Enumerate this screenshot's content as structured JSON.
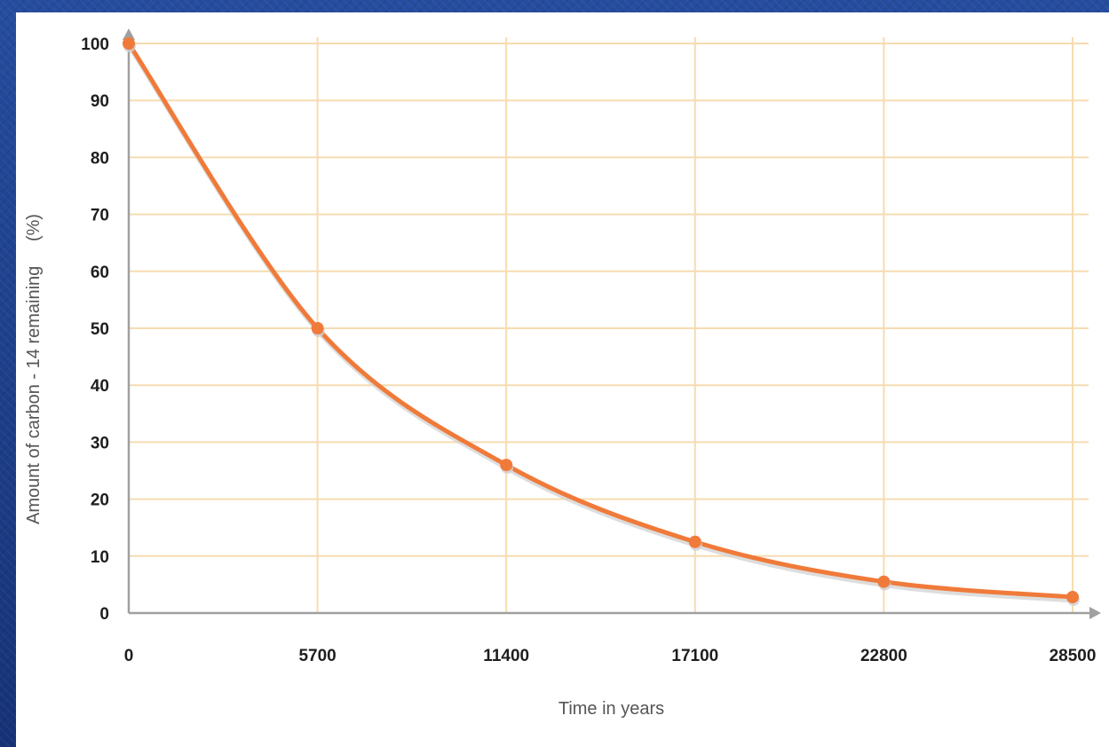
{
  "chart_data": {
    "type": "line",
    "title": "",
    "xlabel": "Time in years",
    "ylabel_main": "Amount of carbon - 14 remaining",
    "ylabel_unit": "(%)",
    "x": [
      0,
      5700,
      11400,
      17100,
      22800,
      28500
    ],
    "series": [
      {
        "values": [
          100,
          50,
          26,
          12.5,
          5.5,
          2.8
        ]
      }
    ],
    "x_tick_labels": [
      "0",
      "5700",
      "11400",
      "17100",
      "22800",
      "28500"
    ],
    "y_tick_labels": [
      "0",
      "10",
      "20",
      "30",
      "40",
      "50",
      "60",
      "70",
      "80",
      "90",
      "100"
    ],
    "xlim": [
      0,
      28500
    ],
    "ylim": [
      0,
      100
    ],
    "grid": true,
    "line_color": "#f07a3a",
    "grid_color": "#f6dcb0",
    "axis_color": "#a0a0a0"
  }
}
